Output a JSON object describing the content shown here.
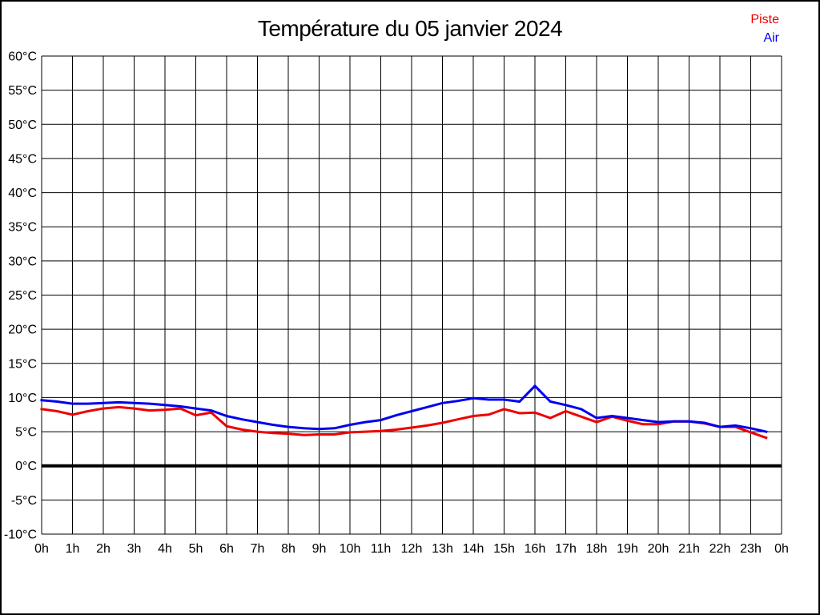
{
  "page": {
    "title": "Température du 05 janvier 2024"
  },
  "legend": {
    "items": [
      {
        "label": "Piste",
        "color": "#ee0000"
      },
      {
        "label": "Air",
        "color": "#0000ee"
      }
    ]
  },
  "chart_data": {
    "type": "line",
    "title": "Température du 05 janvier 2024",
    "grid": true,
    "zero_line": true,
    "legend_position": "top-right",
    "xlim": [
      0,
      24
    ],
    "ylim": [
      -10,
      60
    ],
    "ytick_step": 5,
    "y_unit": "°C",
    "xtick_labels": [
      "0h",
      "1h",
      "2h",
      "3h",
      "4h",
      "5h",
      "6h",
      "7h",
      "8h",
      "9h",
      "10h",
      "11h",
      "12h",
      "13h",
      "14h",
      "15h",
      "16h",
      "17h",
      "18h",
      "19h",
      "20h",
      "21h",
      "22h",
      "23h",
      "0h"
    ],
    "x_hours": [
      0,
      0.5,
      1,
      1.5,
      2,
      2.5,
      3,
      3.5,
      4,
      4.5,
      5,
      5.5,
      6,
      6.5,
      7,
      7.5,
      8,
      8.5,
      9,
      9.5,
      10,
      10.5,
      11,
      11.5,
      12,
      12.5,
      13,
      13.5,
      14,
      14.5,
      15,
      15.5,
      16,
      16.5,
      17,
      17.5,
      18,
      18.5,
      19,
      19.5,
      20,
      20.5,
      21,
      21.5,
      22,
      22.5,
      23,
      23.5
    ],
    "series": [
      {
        "name": "Piste",
        "color": "#ee0000",
        "values": [
          8.3,
          8.0,
          7.5,
          8.0,
          8.4,
          8.6,
          8.4,
          8.1,
          8.2,
          8.4,
          7.4,
          7.8,
          5.8,
          5.3,
          5.0,
          4.8,
          4.7,
          4.5,
          4.6,
          4.6,
          4.9,
          5.0,
          5.1,
          5.3,
          5.6,
          5.9,
          6.3,
          6.8,
          7.3,
          7.5,
          8.3,
          7.7,
          7.8,
          7.0,
          8.0,
          7.2,
          6.4,
          7.2,
          6.6,
          6.1,
          6.1,
          6.5,
          6.5,
          6.2,
          5.7,
          5.7,
          4.9,
          4.1
        ]
      },
      {
        "name": "Air",
        "color": "#0000ee",
        "values": [
          9.6,
          9.4,
          9.1,
          9.1,
          9.2,
          9.3,
          9.2,
          9.1,
          8.9,
          8.7,
          8.4,
          8.1,
          7.3,
          6.8,
          6.4,
          6.0,
          5.7,
          5.5,
          5.4,
          5.5,
          6.0,
          6.4,
          6.7,
          7.4,
          8.0,
          8.6,
          9.2,
          9.5,
          9.9,
          9.7,
          9.7,
          9.4,
          11.7,
          9.4,
          8.9,
          8.3,
          7.0,
          7.3,
          7.0,
          6.7,
          6.4,
          6.5,
          6.5,
          6.3,
          5.7,
          5.9,
          5.5,
          5.0
        ]
      }
    ]
  }
}
